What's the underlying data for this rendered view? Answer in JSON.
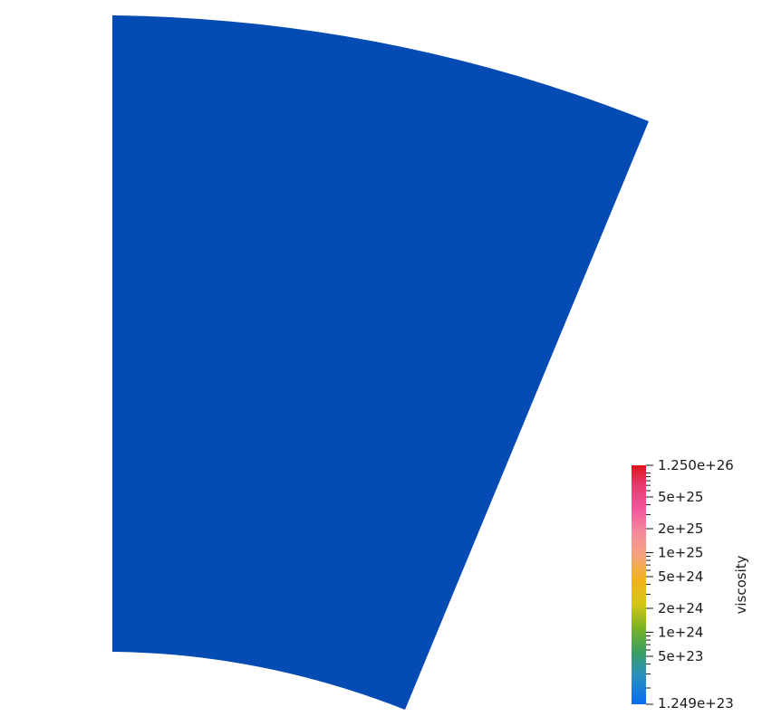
{
  "mesh": {
    "fill_color": "#054bb4"
  },
  "colorbar": {
    "title": "viscosity",
    "scale": "log",
    "min": 1.249e+23,
    "max": 1.25e+26,
    "min_label": "1.249e+23",
    "max_label": "1.250e+26",
    "tick_values": [
      5e+23,
      1e+24,
      2e+24,
      5e+24,
      1e+25,
      2e+25,
      5e+25
    ],
    "tick_labels": [
      "5e+23",
      "1e+24",
      "2e+24",
      "5e+24",
      "1e+25",
      "2e+25",
      "5e+25"
    ],
    "minor_ticks": true,
    "stops": [
      {
        "t": 0.0,
        "color": "#0a6bf0"
      },
      {
        "t": 0.12,
        "color": "#2a8fbe"
      },
      {
        "t": 0.22,
        "color": "#3aa060"
      },
      {
        "t": 0.32,
        "color": "#7ab325"
      },
      {
        "t": 0.42,
        "color": "#d6c614"
      },
      {
        "t": 0.52,
        "color": "#f2b21a"
      },
      {
        "t": 0.62,
        "color": "#f6a37c"
      },
      {
        "t": 0.72,
        "color": "#f58a9c"
      },
      {
        "t": 0.82,
        "color": "#f0569e"
      },
      {
        "t": 0.92,
        "color": "#e63a6c"
      },
      {
        "t": 1.0,
        "color": "#e1141c"
      }
    ]
  }
}
